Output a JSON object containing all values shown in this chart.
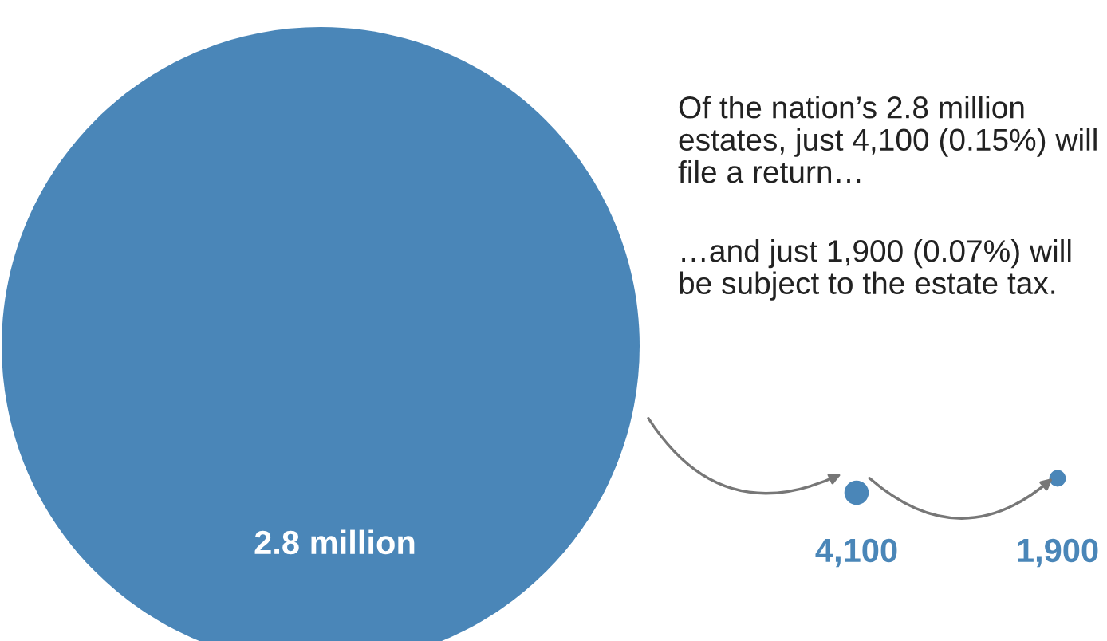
{
  "chart_data": {
    "type": "other",
    "categories": [
      null,
      null,
      null
    ],
    "values": [
      2800000,
      4100,
      1900
    ],
    "value_labels": [
      "2.8 million",
      "4,100",
      "1,900"
    ],
    "color": "#4a86b8",
    "annotations": [
      "Of the nation’s 2.8 million estates, just 4,100 (0.15%) will file a return…",
      "…and just 1,900 (0.07%) will be subject to the estate tax."
    ]
  }
}
